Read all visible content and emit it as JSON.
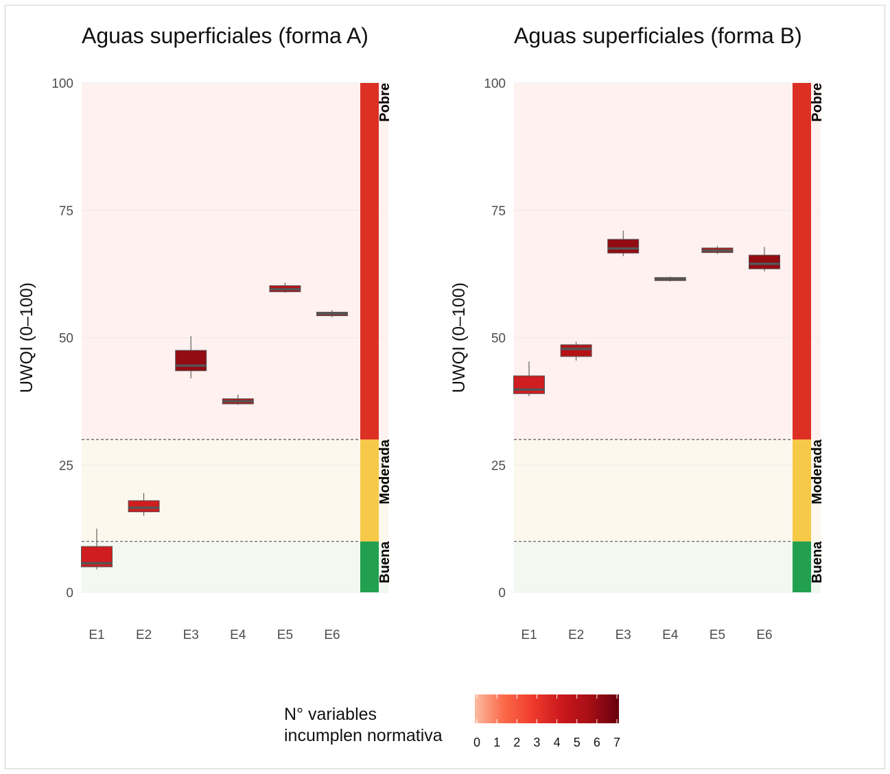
{
  "chart_data": [
    {
      "type": "boxplot",
      "title": "Aguas superficiales (forma A)",
      "ylabel": "UWQI (0–100)",
      "xlabel": "",
      "ylim": [
        0,
        100
      ],
      "yticks": [
        "0",
        "25",
        "50",
        "75",
        "100"
      ],
      "categories": [
        "E1",
        "E2",
        "E3",
        "E4",
        "E5",
        "E6"
      ],
      "boxes": [
        {
          "station": "E1",
          "min": 4.5,
          "q1": 5.0,
          "median": 5.7,
          "q3": 9.0,
          "max": 12.5,
          "violations": 4
        },
        {
          "station": "E2",
          "min": 15.0,
          "q1": 15.8,
          "median": 16.6,
          "q3": 18.0,
          "max": 19.5,
          "violations": 4
        },
        {
          "station": "E3",
          "min": 42.0,
          "q1": 43.5,
          "median": 44.5,
          "q3": 47.5,
          "max": 50.3,
          "violations": 6
        },
        {
          "station": "E4",
          "min": 36.8,
          "q1": 37.0,
          "median": 37.5,
          "q3": 38.0,
          "max": 38.8,
          "violations": 5
        },
        {
          "station": "E5",
          "min": 58.8,
          "q1": 59.0,
          "median": 59.5,
          "q3": 60.2,
          "max": 60.8,
          "violations": 5
        },
        {
          "station": "E6",
          "min": 54.0,
          "q1": 54.3,
          "median": 54.7,
          "q3": 55.0,
          "max": 55.4,
          "violations": 5
        }
      ]
    },
    {
      "type": "boxplot",
      "title": "Aguas superficiales (forma B)",
      "ylabel": "UWQI (0–100)",
      "xlabel": "",
      "ylim": [
        0,
        100
      ],
      "yticks": [
        "0",
        "25",
        "50",
        "75",
        "100"
      ],
      "categories": [
        "E1",
        "E2",
        "E3",
        "E4",
        "E5",
        "E6"
      ],
      "boxes": [
        {
          "station": "E1",
          "min": 38.5,
          "q1": 39.0,
          "median": 39.8,
          "q3": 42.5,
          "max": 45.3,
          "violations": 4
        },
        {
          "station": "E2",
          "min": 45.5,
          "q1": 46.3,
          "median": 47.8,
          "q3": 48.6,
          "max": 49.2,
          "violations": 5
        },
        {
          "station": "E3",
          "min": 66.0,
          "q1": 66.6,
          "median": 67.5,
          "q3": 69.3,
          "max": 71.0,
          "violations": 6
        },
        {
          "station": "E4",
          "min": 61.0,
          "q1": 61.2,
          "median": 61.5,
          "q3": 61.8,
          "max": 62.0,
          "violations": 5
        },
        {
          "station": "E5",
          "min": 66.4,
          "q1": 66.7,
          "median": 67.1,
          "q3": 67.6,
          "max": 68.0,
          "violations": 5
        },
        {
          "station": "E6",
          "min": 63.0,
          "q1": 63.5,
          "median": 64.5,
          "q3": 66.2,
          "max": 67.8,
          "violations": 6
        }
      ]
    }
  ],
  "quality_zones": [
    {
      "label": "Buena",
      "min": 0,
      "max": 10,
      "bar_color": "#22a050",
      "bg_color": "#f3f8f1"
    },
    {
      "label": "Moderada",
      "min": 10,
      "max": 30,
      "bar_color": "#f7c948",
      "bg_color": "#fdf8ee"
    },
    {
      "label": "Pobre",
      "min": 30,
      "max": 100,
      "bar_color": "#dc3024",
      "bg_color": "#fef1f0"
    }
  ],
  "thresholds": [
    10,
    30
  ],
  "legend": {
    "title_line1": "N° variables",
    "title_line2": "incumplen normativa",
    "range": [
      0,
      7
    ],
    "ticks": [
      "0",
      "1",
      "2",
      "3",
      "4",
      "5",
      "6",
      "7"
    ],
    "colors": [
      "#fcbba1",
      "#fb6a4a",
      "#ef3b2c",
      "#cb181d",
      "#a50f15",
      "#67000d"
    ]
  }
}
